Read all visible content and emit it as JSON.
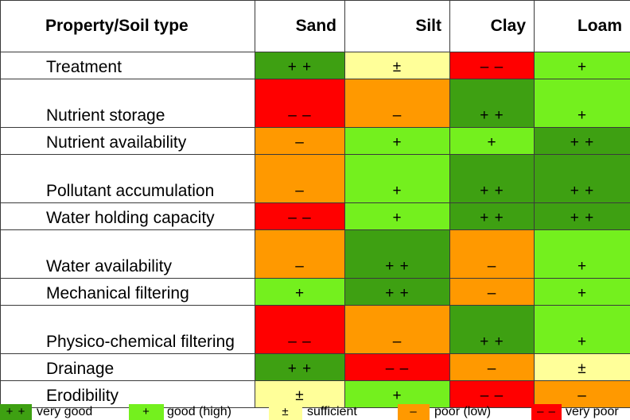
{
  "table": {
    "header": [
      "Property/Soil type",
      "Sand",
      "Silt",
      "Clay",
      "Loam"
    ],
    "rows": [
      {
        "property": "Treatment",
        "size": "short",
        "cells": [
          {
            "symbol": "+ +",
            "level": "very good"
          },
          {
            "symbol": "±",
            "level": "sufficient"
          },
          {
            "symbol": "– –",
            "level": "very poor"
          },
          {
            "symbol": "+",
            "level": "good (high)"
          }
        ]
      },
      {
        "property": "Nutrient storage",
        "size": "tall",
        "cells": [
          {
            "symbol": "– –",
            "level": "very poor"
          },
          {
            "symbol": "–",
            "level": "poor (low)"
          },
          {
            "symbol": "+ +",
            "level": "very good"
          },
          {
            "symbol": "+",
            "level": "good (high)"
          }
        ]
      },
      {
        "property": "Nutrient availability",
        "size": "short",
        "cells": [
          {
            "symbol": "–",
            "level": "poor (low)"
          },
          {
            "symbol": "+",
            "level": "good (high)"
          },
          {
            "symbol": "+",
            "level": "good (high)"
          },
          {
            "symbol": "+ +",
            "level": "very good"
          }
        ]
      },
      {
        "property": "Pollutant accumulation",
        "size": "tall",
        "cells": [
          {
            "symbol": "–",
            "level": "poor (low)"
          },
          {
            "symbol": "+",
            "level": "good (high)"
          },
          {
            "symbol": "+ +",
            "level": "very good"
          },
          {
            "symbol": "+ +",
            "level": "very good"
          }
        ]
      },
      {
        "property": "Water holding capacity",
        "size": "short",
        "cells": [
          {
            "symbol": "– –",
            "level": "very poor"
          },
          {
            "symbol": "+",
            "level": "good (high)"
          },
          {
            "symbol": "+ +",
            "level": "very good"
          },
          {
            "symbol": "+ +",
            "level": "very good"
          }
        ]
      },
      {
        "property": "Water availability",
        "size": "tall",
        "cells": [
          {
            "symbol": "–",
            "level": "poor (low)"
          },
          {
            "symbol": "+ +",
            "level": "very good"
          },
          {
            "symbol": "–",
            "level": "poor (low)"
          },
          {
            "symbol": "+",
            "level": "good (high)"
          }
        ]
      },
      {
        "property": "Mechanical filtering",
        "size": "short",
        "cells": [
          {
            "symbol": "+",
            "level": "good (high)"
          },
          {
            "symbol": "+ +",
            "level": "very good"
          },
          {
            "symbol": "–",
            "level": "poor (low)"
          },
          {
            "symbol": "+",
            "level": "good (high)"
          }
        ]
      },
      {
        "property": "Physico-chemical filtering",
        "size": "tall",
        "cells": [
          {
            "symbol": "– –",
            "level": "very poor"
          },
          {
            "symbol": "–",
            "level": "poor (low)"
          },
          {
            "symbol": "+ +",
            "level": "very good"
          },
          {
            "symbol": "+",
            "level": "good (high)"
          }
        ]
      },
      {
        "property": "Drainage",
        "size": "short",
        "cells": [
          {
            "symbol": "+ +",
            "level": "very good"
          },
          {
            "symbol": "– –",
            "level": "very poor"
          },
          {
            "symbol": "–",
            "level": "poor (low)"
          },
          {
            "symbol": "±",
            "level": "sufficient"
          }
        ]
      },
      {
        "property": "Erodibility",
        "size": "short",
        "cells": [
          {
            "symbol": "±",
            "level": "sufficient"
          },
          {
            "symbol": "+",
            "level": "good (high)"
          },
          {
            "symbol": "– –",
            "level": "very poor"
          },
          {
            "symbol": "–",
            "level": "poor (low)"
          }
        ]
      }
    ]
  },
  "legend": [
    {
      "symbol": "+ +",
      "label": "very good",
      "color": "#3ea012"
    },
    {
      "symbol": "+",
      "label": "good (high)",
      "color": "#74f01e"
    },
    {
      "symbol": "±",
      "label": "sufficient",
      "color": "#ffff99"
    },
    {
      "symbol": "–",
      "label": "poor (low)",
      "color": "#ff9900"
    },
    {
      "symbol": "– –",
      "label": "very poor",
      "color": "#ff0000"
    }
  ]
}
